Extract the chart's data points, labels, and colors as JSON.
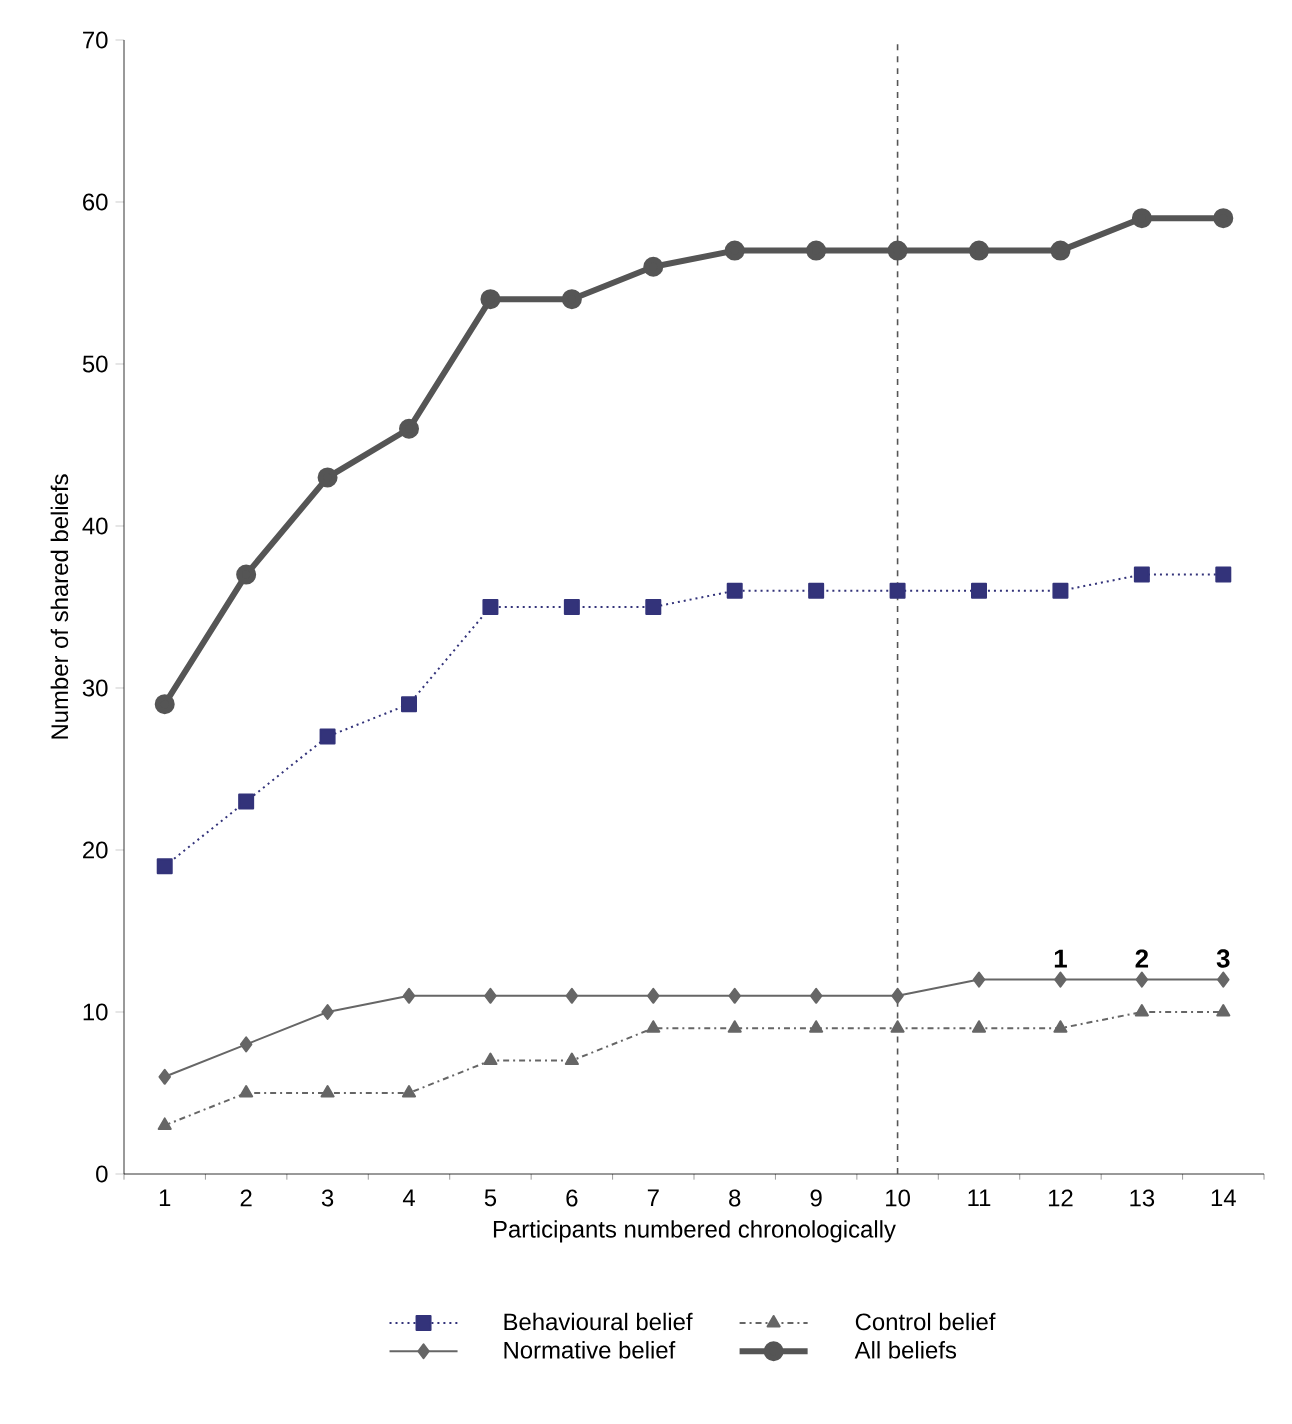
{
  "chart_data": {
    "type": "line",
    "xlabel": "Participants numbered chronologically",
    "ylabel": "Number of shared beliefs",
    "categories": [
      "1",
      "2",
      "3",
      "4",
      "5",
      "6",
      "7",
      "8",
      "9",
      "10",
      "11",
      "12",
      "13",
      "14"
    ],
    "series": [
      {
        "name": "Behavioural belief",
        "color": "#33337a",
        "marker": "square",
        "line_style": "dotted",
        "values": [
          19,
          23,
          27,
          29,
          35,
          35,
          35,
          36,
          36,
          36,
          36,
          36,
          37,
          37
        ]
      },
      {
        "name": "Control belief",
        "color": "#666666",
        "marker": "triangle",
        "line_style": "dashdot",
        "values": [
          3,
          5,
          5,
          5,
          7,
          7,
          9,
          9,
          9,
          9,
          9,
          9,
          10,
          10
        ]
      },
      {
        "name": "Normative belief",
        "color": "#666666",
        "marker": "diamond",
        "line_style": "solid",
        "values": [
          6,
          8,
          10,
          11,
          11,
          11,
          11,
          11,
          11,
          11,
          12,
          12,
          12,
          12
        ]
      },
      {
        "name": "All beliefs",
        "color": "#555555",
        "marker": "circle",
        "line_style": "solid",
        "values": [
          29,
          37,
          43,
          46,
          54,
          54,
          56,
          57,
          57,
          57,
          57,
          57,
          59,
          59
        ]
      }
    ],
    "ylim": [
      0,
      70
    ],
    "yticks": [
      0,
      10,
      20,
      30,
      40,
      50,
      60,
      70
    ],
    "ref_lines": [
      {
        "axis": "x",
        "value": "10",
        "line_style": "dashed",
        "color": "#555555"
      }
    ],
    "annotations": [
      "1",
      "2",
      "3"
    ],
    "legend": "bottom",
    "grid": false
  }
}
